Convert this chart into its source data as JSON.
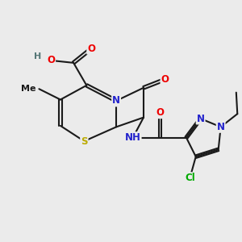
{
  "bg": "#ebebeb",
  "bond_color": "#1a1a1a",
  "bw": 1.5,
  "dbo": 0.06,
  "atom_colors": {
    "O": "#ee0000",
    "N": "#2222cc",
    "S": "#bbaa00",
    "Cl": "#00aa00",
    "H": "#557777",
    "C": "#1a1a1a"
  },
  "fs": 8.5
}
